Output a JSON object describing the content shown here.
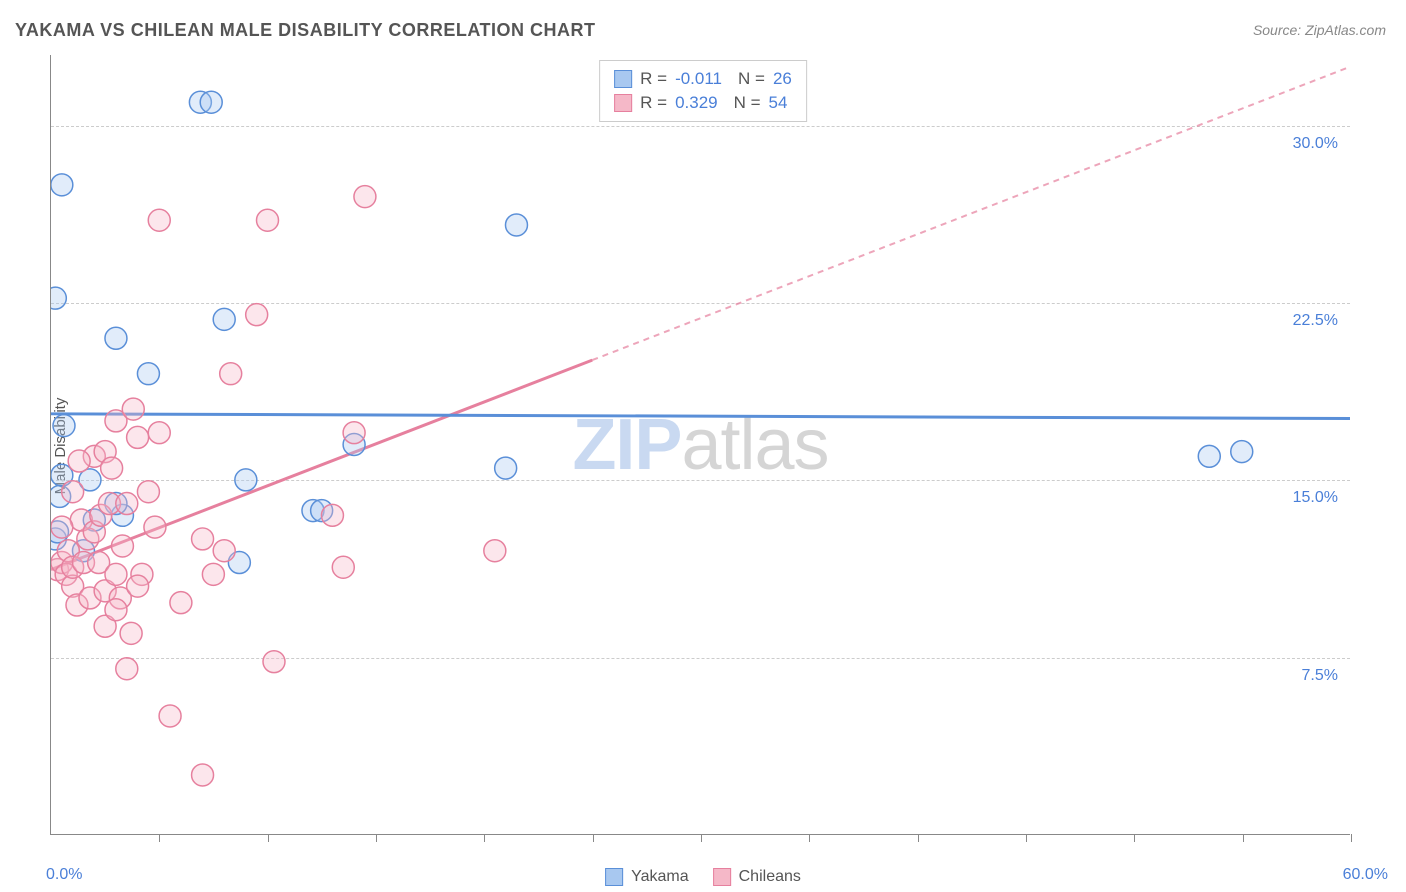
{
  "title": "YAKAMA VS CHILEAN MALE DISABILITY CORRELATION CHART",
  "source": "Source: ZipAtlas.com",
  "y_axis_label": "Male Disability",
  "watermark": {
    "part1": "ZIP",
    "part2": "atlas"
  },
  "chart": {
    "type": "scatter",
    "background_color": "#ffffff",
    "grid_color": "#cccccc",
    "axis_color": "#888888",
    "label_color": "#4a7fd8",
    "xlim": [
      0,
      60
    ],
    "ylim": [
      0,
      33
    ],
    "x_tick_positions": [
      0,
      5,
      10,
      15,
      20,
      25,
      30,
      35,
      40,
      45,
      50,
      55,
      60
    ],
    "y_gridlines": [
      7.5,
      15.0,
      22.5,
      30.0
    ],
    "y_tick_labels": [
      "7.5%",
      "15.0%",
      "22.5%",
      "30.0%"
    ],
    "x_min_label": "0.0%",
    "x_max_label": "60.0%",
    "point_radius": 11,
    "point_stroke_width": 1.5,
    "point_fill_opacity": 0.35,
    "series": [
      {
        "name": "Yakama",
        "color": "#5a8fd8",
        "fill": "#a8c8f0",
        "r_value": "-0.011",
        "n_value": "26",
        "regression": {
          "x1": 0,
          "y1": 17.8,
          "x2": 60,
          "y2": 17.6,
          "solid_to_x": 60
        },
        "points": [
          [
            0.5,
            27.5
          ],
          [
            0.2,
            22.7
          ],
          [
            3.0,
            21.0
          ],
          [
            0.6,
            17.3
          ],
          [
            0.5,
            15.2
          ],
          [
            0.4,
            14.3
          ],
          [
            0.2,
            12.5
          ],
          [
            0.3,
            12.8
          ],
          [
            1.8,
            15.0
          ],
          [
            2.0,
            13.3
          ],
          [
            3.3,
            13.5
          ],
          [
            6.9,
            31.0
          ],
          [
            7.4,
            31.0
          ],
          [
            8.0,
            21.8
          ],
          [
            9.0,
            15.0
          ],
          [
            12.1,
            13.7
          ],
          [
            12.5,
            13.7
          ],
          [
            8.7,
            11.5
          ],
          [
            14.0,
            16.5
          ],
          [
            21.5,
            25.8
          ],
          [
            21.0,
            15.5
          ],
          [
            53.5,
            16.0
          ],
          [
            55.0,
            16.2
          ],
          [
            3.0,
            14.0
          ],
          [
            4.5,
            19.5
          ],
          [
            1.5,
            12.0
          ]
        ]
      },
      {
        "name": "Chileans",
        "color": "#e6809e",
        "fill": "#f5b8c8",
        "r_value": "0.329",
        "n_value": "54",
        "regression": {
          "x1": 0,
          "y1": 11.2,
          "x2": 60,
          "y2": 32.5,
          "solid_to_x": 25
        },
        "points": [
          [
            0.3,
            11.2
          ],
          [
            0.5,
            11.5
          ],
          [
            0.7,
            11.0
          ],
          [
            0.8,
            12.0
          ],
          [
            1.0,
            10.5
          ],
          [
            1.0,
            11.3
          ],
          [
            1.2,
            9.7
          ],
          [
            1.5,
            11.5
          ],
          [
            1.7,
            12.5
          ],
          [
            1.4,
            13.3
          ],
          [
            1.8,
            10.0
          ],
          [
            2.0,
            12.8
          ],
          [
            2.2,
            11.5
          ],
          [
            2.3,
            13.5
          ],
          [
            2.5,
            10.3
          ],
          [
            2.7,
            14.0
          ],
          [
            2.0,
            16.0
          ],
          [
            2.5,
            16.2
          ],
          [
            3.0,
            17.5
          ],
          [
            3.0,
            11.0
          ],
          [
            3.3,
            12.2
          ],
          [
            3.2,
            10.0
          ],
          [
            3.5,
            14.0
          ],
          [
            4.0,
            16.8
          ],
          [
            3.7,
            8.5
          ],
          [
            3.5,
            7.0
          ],
          [
            4.2,
            11.0
          ],
          [
            5.0,
            26.0
          ],
          [
            4.8,
            13.0
          ],
          [
            5.0,
            17.0
          ],
          [
            6.0,
            9.8
          ],
          [
            5.5,
            5.0
          ],
          [
            7.0,
            2.5
          ],
          [
            7.0,
            12.5
          ],
          [
            8.3,
            19.5
          ],
          [
            8.0,
            12.0
          ],
          [
            7.5,
            11.0
          ],
          [
            9.5,
            22.0
          ],
          [
            10.0,
            26.0
          ],
          [
            10.3,
            7.3
          ],
          [
            13.0,
            13.5
          ],
          [
            13.5,
            11.3
          ],
          [
            14.5,
            27.0
          ],
          [
            14.0,
            17.0
          ],
          [
            20.5,
            12.0
          ],
          [
            2.8,
            15.5
          ],
          [
            4.0,
            10.5
          ],
          [
            1.0,
            14.5
          ],
          [
            1.3,
            15.8
          ],
          [
            0.5,
            13.0
          ],
          [
            3.8,
            18.0
          ],
          [
            4.5,
            14.5
          ],
          [
            2.5,
            8.8
          ],
          [
            3.0,
            9.5
          ]
        ]
      }
    ]
  },
  "legend_bottom": [
    {
      "label": "Yakama",
      "fill": "#a8c8f0",
      "stroke": "#5a8fd8"
    },
    {
      "label": "Chileans",
      "fill": "#f5b8c8",
      "stroke": "#e6809e"
    }
  ]
}
